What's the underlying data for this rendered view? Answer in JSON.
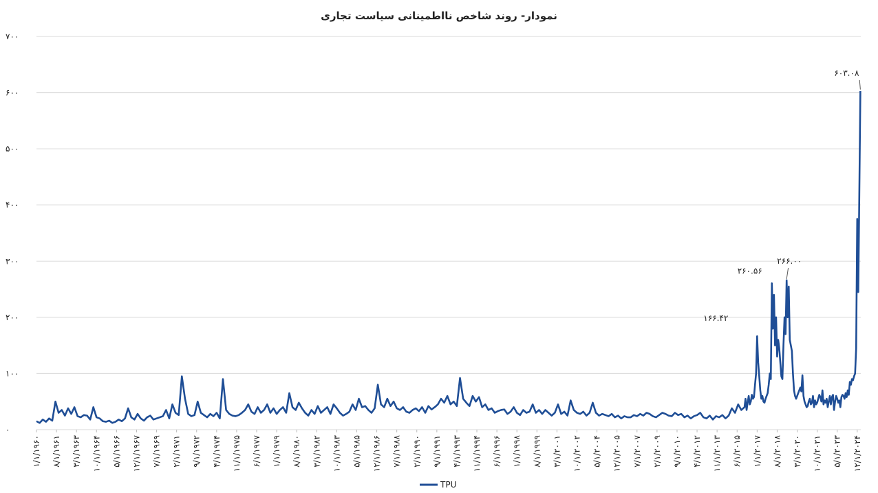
{
  "chart_data": {
    "type": "line",
    "title": "نمودار- روند شاخص نااطمینانی سیاست تجاری",
    "xlim": [
      1960,
      2025.2
    ],
    "ylim": [
      0,
      700
    ],
    "yticks": [
      {
        "value": 0,
        "label": "۰"
      },
      {
        "value": 100,
        "label": "۱۰۰"
      },
      {
        "value": 200,
        "label": "۲۰۰"
      },
      {
        "value": 300,
        "label": "۳۰۰"
      },
      {
        "value": 400,
        "label": "۴۰۰"
      },
      {
        "value": 500,
        "label": "۵۰۰"
      },
      {
        "value": 600,
        "label": "۶۰۰"
      },
      {
        "value": 700,
        "label": "۷۰۰"
      }
    ],
    "xticks": [
      {
        "value": 1960,
        "label": "۱/۱/۱۹۶۰"
      },
      {
        "value": 1961.583,
        "label": "۸/۱/۱۹۶۱"
      },
      {
        "value": 1963.167,
        "label": "۳/۱/۱۹۶۳"
      },
      {
        "value": 1964.75,
        "label": "۱۰/۱/۱۹۶۴"
      },
      {
        "value": 1966.333,
        "label": "۵/۱/۱۹۶۶"
      },
      {
        "value": 1967.917,
        "label": "۱۲/۱/۱۹۶۷"
      },
      {
        "value": 1969.5,
        "label": "۷/۱/۱۹۶۹"
      },
      {
        "value": 1971.083,
        "label": "۲/۱/۱۹۷۱"
      },
      {
        "value": 1972.667,
        "label": "۹/۱/۱۹۷۲"
      },
      {
        "value": 1974.25,
        "label": "۴/۱/۱۹۷۴"
      },
      {
        "value": 1975.833,
        "label": "۱۱/۱/۱۹۷۵"
      },
      {
        "value": 1977.417,
        "label": "۶/۱/۱۹۷۷"
      },
      {
        "value": 1979,
        "label": "۱/۱/۱۹۷۹"
      },
      {
        "value": 1980.583,
        "label": "۸/۱/۱۹۸۰"
      },
      {
        "value": 1982.167,
        "label": "۳/۱/۱۹۸۲"
      },
      {
        "value": 1983.75,
        "label": "۱۰/۱/۱۹۸۳"
      },
      {
        "value": 1985.333,
        "label": "۵/۱/۱۹۸۵"
      },
      {
        "value": 1986.917,
        "label": "۱۲/۱/۱۹۸۶"
      },
      {
        "value": 1988.5,
        "label": "۷/۱/۱۹۸۸"
      },
      {
        "value": 1990.083,
        "label": "۲/۱/۱۹۹۰"
      },
      {
        "value": 1991.667,
        "label": "۹/۱/۱۹۹۱"
      },
      {
        "value": 1993.25,
        "label": "۴/۱/۱۹۹۳"
      },
      {
        "value": 1994.833,
        "label": "۱۱/۱/۱۹۹۴"
      },
      {
        "value": 1996.417,
        "label": "۶/۱/۱۹۹۶"
      },
      {
        "value": 1998,
        "label": "۱/۱/۱۹۹۸"
      },
      {
        "value": 1999.583,
        "label": "۸/۱/۱۹۹۹"
      },
      {
        "value": 2001.167,
        "label": "۳/۱/۲۰۰۱"
      },
      {
        "value": 2002.75,
        "label": "۱۰/۱/۲۰۰۲"
      },
      {
        "value": 2004.333,
        "label": "۵/۱/۲۰۰۴"
      },
      {
        "value": 2005.917,
        "label": "۱۲/۱/۲۰۰۵"
      },
      {
        "value": 2007.5,
        "label": "۷/۱/۲۰۰۷"
      },
      {
        "value": 2009.083,
        "label": "۲/۱/۲۰۰۹"
      },
      {
        "value": 2010.667,
        "label": "۹/۱/۲۰۱۰"
      },
      {
        "value": 2012.25,
        "label": "۴/۱/۲۰۱۲"
      },
      {
        "value": 2013.833,
        "label": "۱۱/۱/۲۰۱۳"
      },
      {
        "value": 2015.417,
        "label": "۶/۱/۲۰۱۵"
      },
      {
        "value": 2017,
        "label": "۱/۱/۲۰۱۷"
      },
      {
        "value": 2018.583,
        "label": "۸/۱/۲۰۱۸"
      },
      {
        "value": 2020.167,
        "label": "۳/۱/۲۰۲۰"
      },
      {
        "value": 2021.75,
        "label": "۱۰/۱/۲۰۲۱"
      },
      {
        "value": 2023.333,
        "label": "۵/۱/۲۰۲۳"
      },
      {
        "value": 2024.917,
        "label": "۱۲/۱/۲۰۲۴"
      }
    ],
    "grid": true,
    "x": [
      1960,
      1960.25,
      1960.5,
      1960.75,
      1961,
      1961.25,
      1961.5,
      1961.75,
      1962,
      1962.25,
      1962.5,
      1962.75,
      1963,
      1963.25,
      1963.5,
      1963.75,
      1964,
      1964.25,
      1964.5,
      1964.75,
      1965,
      1965.25,
      1965.5,
      1965.75,
      1966,
      1966.25,
      1966.5,
      1966.75,
      1967,
      1967.25,
      1967.5,
      1967.75,
      1968,
      1968.25,
      1968.5,
      1968.75,
      1969,
      1969.25,
      1969.5,
      1969.75,
      1970,
      1970.25,
      1970.5,
      1970.75,
      1971,
      1971.25,
      1971.5,
      1971.75,
      1972,
      1972.25,
      1972.5,
      1972.75,
      1973,
      1973.25,
      1973.5,
      1973.75,
      1974,
      1974.25,
      1974.5,
      1974.75,
      1975,
      1975.25,
      1975.5,
      1975.75,
      1976,
      1976.25,
      1976.5,
      1976.75,
      1977,
      1977.25,
      1977.5,
      1977.75,
      1978,
      1978.25,
      1978.5,
      1978.75,
      1979,
      1979.25,
      1979.5,
      1979.75,
      1980,
      1980.25,
      1980.5,
      1980.75,
      1981,
      1981.25,
      1981.5,
      1981.75,
      1982,
      1982.25,
      1982.5,
      1982.75,
      1983,
      1983.25,
      1983.5,
      1983.75,
      1984,
      1984.25,
      1984.5,
      1984.75,
      1985,
      1985.25,
      1985.5,
      1985.75,
      1986,
      1986.25,
      1986.5,
      1986.75,
      1987,
      1987.25,
      1987.5,
      1987.75,
      1988,
      1988.25,
      1988.5,
      1988.75,
      1989,
      1989.25,
      1989.5,
      1989.75,
      1990,
      1990.25,
      1990.5,
      1990.75,
      1991,
      1991.25,
      1991.5,
      1991.75,
      1992,
      1992.25,
      1992.5,
      1992.75,
      1993,
      1993.25,
      1993.5,
      1993.75,
      1994,
      1994.25,
      1994.5,
      1994.75,
      1995,
      1995.25,
      1995.5,
      1995.75,
      1996,
      1996.25,
      1996.5,
      1996.75,
      1997,
      1997.25,
      1997.5,
      1997.75,
      1998,
      1998.25,
      1998.5,
      1998.75,
      1999,
      1999.25,
      1999.5,
      1999.75,
      2000,
      2000.25,
      2000.5,
      2000.75,
      2001,
      2001.25,
      2001.5,
      2001.75,
      2002,
      2002.25,
      2002.5,
      2002.75,
      2003,
      2003.25,
      2003.5,
      2003.75,
      2004,
      2004.25,
      2004.5,
      2004.75,
      2005,
      2005.25,
      2005.5,
      2005.75,
      2006,
      2006.25,
      2006.5,
      2006.75,
      2007,
      2007.25,
      2007.5,
      2007.75,
      2008,
      2008.25,
      2008.5,
      2008.75,
      2009,
      2009.25,
      2009.5,
      2009.75,
      2010,
      2010.25,
      2010.5,
      2010.75,
      2011,
      2011.25,
      2011.5,
      2011.75,
      2012,
      2012.25,
      2012.5,
      2012.75,
      2013,
      2013.25,
      2013.5,
      2013.75,
      2014,
      2014.25,
      2014.5,
      2014.75,
      2015,
      2015.25,
      2015.5,
      2015.75,
      2016,
      2016.083,
      2016.167,
      2016.25,
      2016.333,
      2016.417,
      2016.5,
      2016.583,
      2016.667,
      2016.75,
      2016.833,
      2016.917,
      2017,
      2017.083,
      2017.167,
      2017.25,
      2017.333,
      2017.417,
      2017.5,
      2017.583,
      2017.667,
      2017.75,
      2017.833,
      2017.917,
      2018,
      2018.083,
      2018.167,
      2018.25,
      2018.333,
      2018.417,
      2018.5,
      2018.583,
      2018.667,
      2018.75,
      2018.833,
      2018.917,
      2019,
      2019.083,
      2019.167,
      2019.25,
      2019.333,
      2019.417,
      2019.5,
      2019.583,
      2019.667,
      2019.75,
      2019.833,
      2019.917,
      2020,
      2020.083,
      2020.167,
      2020.25,
      2020.333,
      2020.417,
      2020.5,
      2020.583,
      2020.667,
      2020.75,
      2020.833,
      2020.917,
      2021,
      2021.083,
      2021.167,
      2021.25,
      2021.333,
      2021.417,
      2021.5,
      2021.583,
      2021.667,
      2021.75,
      2021.833,
      2021.917,
      2022,
      2022.083,
      2022.167,
      2022.25,
      2022.333,
      2022.417,
      2022.5,
      2022.583,
      2022.667,
      2022.75,
      2022.833,
      2022.917,
      2023,
      2023.083,
      2023.167,
      2023.25,
      2023.333,
      2023.417,
      2023.5,
      2023.583,
      2023.667,
      2023.75,
      2023.833,
      2023.917,
      2024,
      2024.083,
      2024.167,
      2024.25,
      2024.333,
      2024.417,
      2024.5,
      2024.583,
      2024.667,
      2024.75,
      2024.833,
      2024.917,
      2025,
      2025.083,
      2025.167
    ],
    "series": [
      {
        "name": "TPU",
        "color": "#1f4e96",
        "values": [
          15,
          12,
          18,
          14,
          20,
          16,
          50,
          30,
          35,
          25,
          38,
          28,
          40,
          24,
          22,
          26,
          25,
          18,
          40,
          22,
          20,
          15,
          14,
          16,
          12,
          14,
          18,
          15,
          20,
          38,
          22,
          18,
          28,
          20,
          16,
          22,
          25,
          18,
          20,
          22,
          24,
          35,
          20,
          45,
          30,
          26,
          95,
          55,
          28,
          24,
          26,
          50,
          30,
          26,
          22,
          28,
          24,
          30,
          20,
          90,
          35,
          28,
          25,
          24,
          26,
          30,
          35,
          45,
          32,
          28,
          40,
          30,
          35,
          45,
          30,
          38,
          28,
          35,
          40,
          30,
          65,
          40,
          35,
          48,
          38,
          30,
          25,
          35,
          28,
          42,
          30,
          35,
          40,
          28,
          45,
          38,
          30,
          25,
          28,
          32,
          45,
          35,
          55,
          40,
          42,
          35,
          30,
          38,
          80,
          45,
          40,
          55,
          42,
          50,
          38,
          35,
          40,
          32,
          30,
          35,
          38,
          33,
          40,
          30,
          42,
          36,
          40,
          45,
          55,
          48,
          60,
          45,
          50,
          42,
          92,
          55,
          48,
          42,
          60,
          50,
          58,
          40,
          45,
          35,
          38,
          30,
          33,
          35,
          36,
          28,
          32,
          40,
          30,
          26,
          35,
          30,
          32,
          45,
          30,
          35,
          28,
          35,
          30,
          25,
          30,
          45,
          28,
          32,
          25,
          52,
          35,
          30,
          28,
          32,
          25,
          30,
          48,
          30,
          25,
          28,
          26,
          24,
          28,
          22,
          25,
          20,
          24,
          22,
          22,
          26,
          24,
          28,
          25,
          30,
          28,
          24,
          22,
          26,
          30,
          28,
          25,
          24,
          30,
          26,
          28,
          22,
          25,
          20,
          24,
          26,
          30,
          22,
          20,
          25,
          18,
          24,
          22,
          26,
          20,
          25,
          38,
          30,
          45,
          35,
          40,
          55,
          35,
          48,
          60,
          45,
          50,
          62,
          55,
          58,
          80,
          100,
          166.42,
          120,
          95,
          70,
          55,
          60,
          50,
          48,
          55,
          60,
          65,
          80,
          100,
          90,
          260.56,
          180,
          240,
          150,
          200,
          130,
          160,
          145,
          120,
          95,
          90,
          150,
          200,
          170,
          266,
          200,
          255,
          160,
          150,
          140,
          100,
          70,
          60,
          55,
          60,
          65,
          70,
          75,
          68,
          97,
          60,
          50,
          45,
          40,
          42,
          50,
          55,
          45,
          48,
          60,
          40,
          52,
          45,
          48,
          55,
          62,
          58,
          50,
          70,
          45,
          52,
          48,
          55,
          40,
          50,
          60,
          45,
          58,
          62,
          35,
          50,
          60,
          55,
          48,
          52,
          40,
          58,
          62,
          60,
          55,
          65,
          58,
          70,
          62,
          85,
          80,
          90,
          88,
          95,
          100,
          145,
          375,
          245,
          420,
          603.08
        ]
      }
    ],
    "annotations": [
      {
        "x": 2017,
        "y": 166.42,
        "label": "۱۶۶.۴۲"
      },
      {
        "x": 2018.167,
        "y": 260.56,
        "label": "۲۶۰.۵۶"
      },
      {
        "x": 2019.333,
        "y": 266,
        "label": "۲۶۶.۰۰"
      },
      {
        "x": 2025.167,
        "y": 603.08,
        "label": "۶۰۳.۰۸"
      }
    ]
  }
}
